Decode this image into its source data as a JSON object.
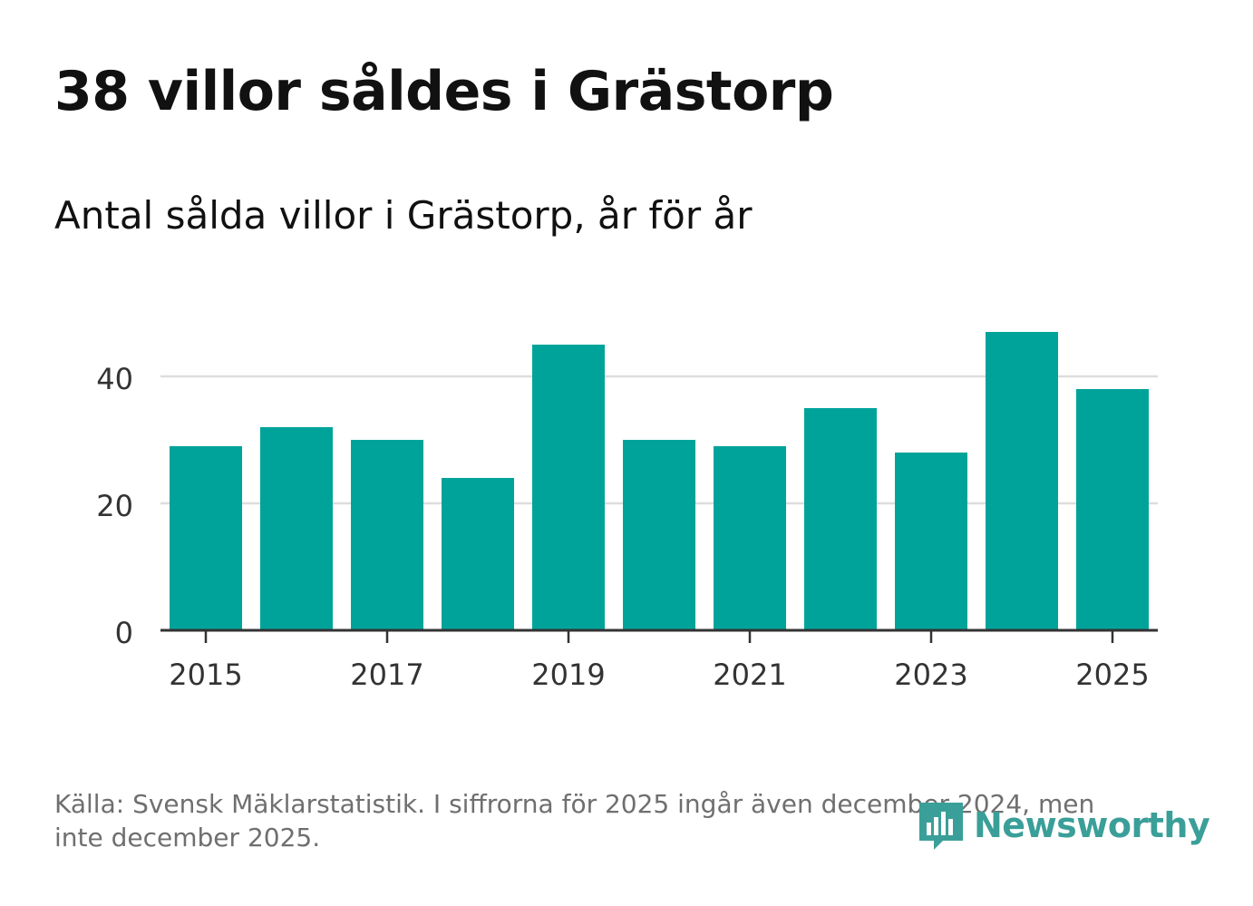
{
  "title": "38 villor såldes i Grästorp",
  "subtitle": "Antal sålda villor i Grästorp, år för år",
  "source": "Källa: Svensk Mäklarstatistik. I siffrorna för 2025 ingår även december 2024, men inte december 2025.",
  "brand": {
    "name": "Newsworthy",
    "icon": "newsworthy-logo-icon"
  },
  "colors": {
    "bar": "#00a39a",
    "grid": "#dddddd",
    "axis": "#333333",
    "brand": "#3a9f98"
  },
  "chart_data": {
    "type": "bar",
    "x": [
      2015,
      2016,
      2017,
      2018,
      2019,
      2020,
      2021,
      2022,
      2023,
      2024,
      2025
    ],
    "values": [
      29,
      32,
      30,
      24,
      45,
      30,
      29,
      35,
      28,
      47,
      38
    ],
    "x_ticks": [
      "2015",
      "2017",
      "2019",
      "2021",
      "2023",
      "2025"
    ],
    "y_ticks": [
      "0",
      "20",
      "40"
    ],
    "ylim": [
      0,
      50
    ],
    "grid": true,
    "xlabel": "",
    "ylabel": ""
  }
}
